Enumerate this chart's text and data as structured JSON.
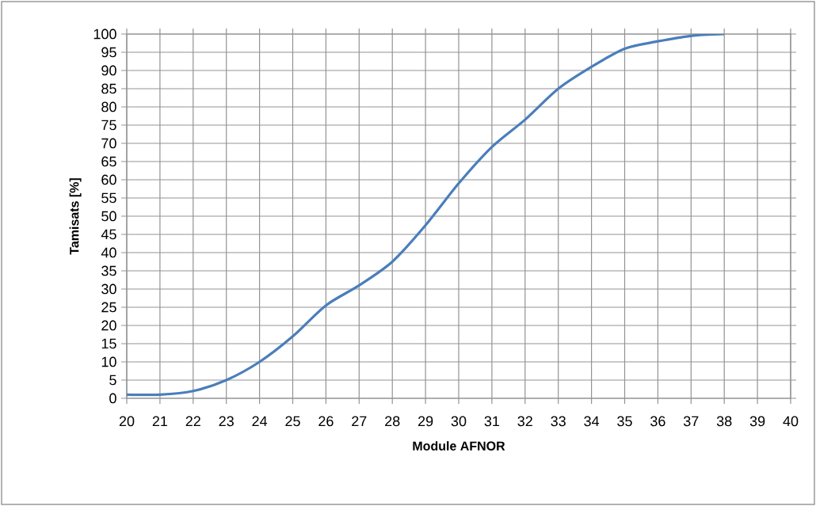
{
  "chart_data": {
    "type": "line",
    "xlabel": "Module AFNOR",
    "ylabel": "Tamisats [%]",
    "x": [
      20,
      21,
      22,
      23,
      24,
      25,
      26,
      27,
      28,
      29,
      30,
      31,
      32,
      33,
      34,
      35,
      36,
      37,
      38
    ],
    "series": [
      {
        "color": "#4a7ebb",
        "values": [
          1,
          1,
          2,
          5,
          10,
          17,
          25.5,
          31,
          37.5,
          47.5,
          59,
          69,
          76.5,
          85,
          91,
          96,
          98,
          99.5,
          100
        ]
      }
    ],
    "xlim": [
      20,
      40
    ],
    "xticks": [
      20,
      21,
      22,
      23,
      24,
      25,
      26,
      27,
      28,
      29,
      30,
      31,
      32,
      33,
      34,
      35,
      36,
      37,
      38,
      39,
      40
    ],
    "ylim": [
      0,
      100
    ],
    "yticks": [
      0,
      5,
      10,
      15,
      20,
      25,
      30,
      35,
      40,
      45,
      50,
      55,
      60,
      65,
      70,
      75,
      80,
      85,
      90,
      95,
      100
    ],
    "grid": true,
    "marker": "none",
    "line_style": "solid"
  }
}
